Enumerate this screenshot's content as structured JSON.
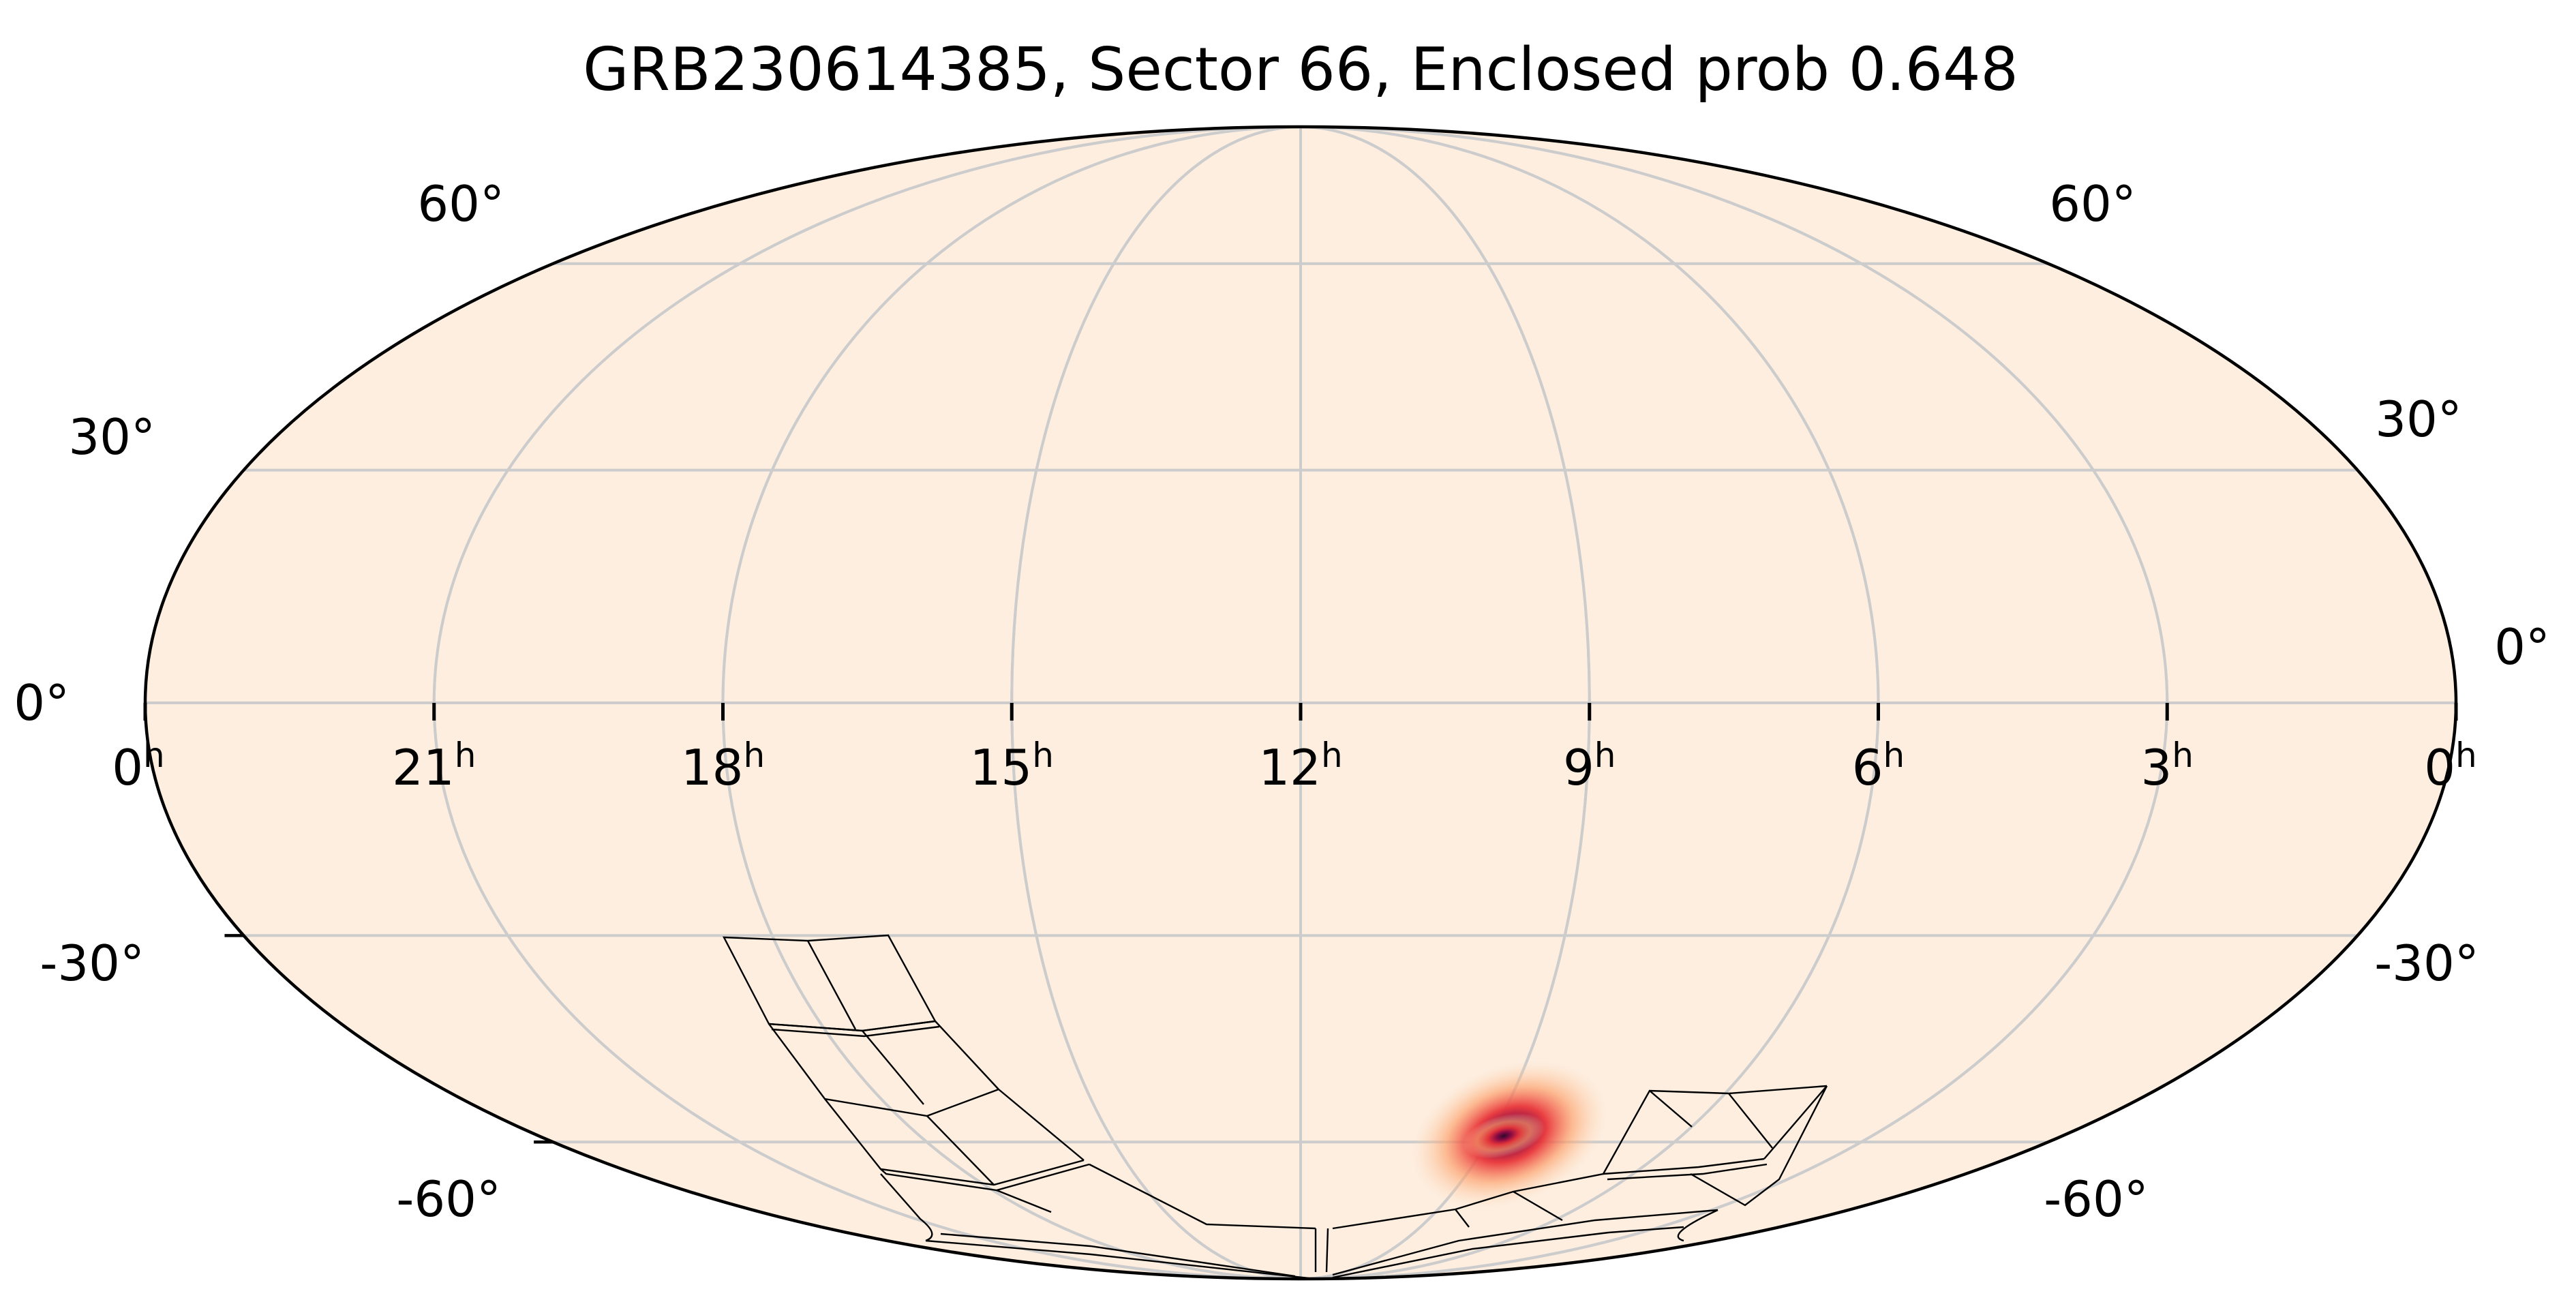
{
  "figure": {
    "title": "GRB230614385, Sector 66, Enclosed prob 0.648",
    "projection": "Mollweide",
    "background_color": "#fdeee0",
    "outline_color": "#000000",
    "grid_color": "#cccccc",
    "footprint_color": "#000000",
    "hotspot_colors": [
      "#fdd9b5",
      "#fca06a",
      "#e8353a",
      "#8b0a43",
      "#2c0a2e"
    ]
  },
  "axes": {
    "ra_ticks": [
      {
        "hours": 0,
        "label": "0",
        "unit": "h",
        "side": "left"
      },
      {
        "hours": 21,
        "label": "21",
        "unit": "h"
      },
      {
        "hours": 18,
        "label": "18",
        "unit": "h"
      },
      {
        "hours": 15,
        "label": "15",
        "unit": "h"
      },
      {
        "hours": 12,
        "label": "12",
        "unit": "h"
      },
      {
        "hours": 9,
        "label": "9",
        "unit": "h"
      },
      {
        "hours": 6,
        "label": "6",
        "unit": "h"
      },
      {
        "hours": 3,
        "label": "3",
        "unit": "h"
      },
      {
        "hours": 0,
        "label": "0",
        "unit": "h",
        "side": "right"
      }
    ],
    "dec_ticks_left": [
      {
        "deg": 60,
        "label": "60°"
      },
      {
        "deg": 30,
        "label": "30°"
      },
      {
        "deg": 0,
        "label": "0°"
      },
      {
        "deg": -30,
        "label": "-30°"
      },
      {
        "deg": -60,
        "label": "-60°"
      }
    ],
    "dec_ticks_right": [
      {
        "deg": 60,
        "label": "60°"
      },
      {
        "deg": 30,
        "label": "30°"
      },
      {
        "deg": 0,
        "label": "0°"
      },
      {
        "deg": -30,
        "label": "-30°"
      },
      {
        "deg": -60,
        "label": "-60°"
      }
    ],
    "meridians_hours": [
      21,
      18,
      15,
      9,
      6,
      3
    ],
    "parallels_deg": [
      -60,
      -30,
      0,
      30,
      60
    ]
  },
  "map_data": {
    "probability_peak": {
      "ra_hours": 8.8,
      "dec_deg": -59
    }
  }
}
